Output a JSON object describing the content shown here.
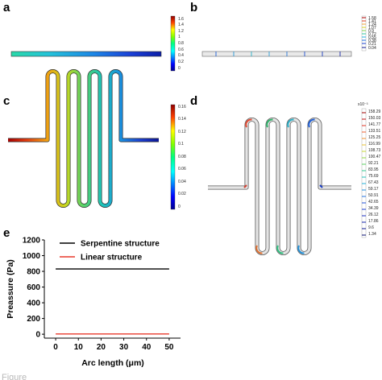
{
  "panels": {
    "a": {
      "letter": "a",
      "colorbar_ticks": [
        "1.6",
        "1.4",
        "1.2",
        "1",
        "0.8",
        "0.6",
        "0.4",
        "0.2",
        "0"
      ]
    },
    "b": {
      "letter": "b",
      "colorbar_ticks": [
        "1.58",
        "1.41",
        "1.24",
        "1.07",
        "0.9",
        "0.72",
        "0.55",
        "0.38",
        "0.21",
        "0.04"
      ]
    },
    "c": {
      "letter": "c",
      "colorbar_ticks": [
        "0.16",
        "0.14",
        "0.12",
        "0.1",
        "0.08",
        "0.06",
        "0.04",
        "0.02",
        "0"
      ]
    },
    "d": {
      "letter": "d",
      "colorbar_exponent": "x10⁻³",
      "colorbar_ticks": [
        "158.29",
        "150.03",
        "141.77",
        "133.51",
        "125.25",
        "116.99",
        "108.73",
        "100.47",
        "92.21",
        "83.95",
        "75.69",
        "67.43",
        "59.17",
        "50.91",
        "42.65",
        "34.39",
        "26.12",
        "17.86",
        "9.6",
        "1.34"
      ]
    },
    "e": {
      "letter": "e"
    }
  },
  "chart_data": {
    "type": "line",
    "xlabel": "Arc length (μm)",
    "ylabel": "Preassure (Pa)",
    "xlim": [
      -5,
      55
    ],
    "ylim": [
      -50,
      1200
    ],
    "x_ticks": [
      "0",
      "10",
      "20",
      "30",
      "40",
      "50"
    ],
    "y_ticks": [
      "0",
      "200",
      "400",
      "600",
      "800",
      "1000",
      "1200"
    ],
    "legend_position": "top-right",
    "series": [
      {
        "name": "Serpentine structure",
        "color": "#000000",
        "x": [
          0,
          50
        ],
        "y": [
          830,
          830
        ]
      },
      {
        "name": "Linear structure",
        "color": "#e8392b",
        "x": [
          0,
          50
        ],
        "y": [
          3,
          3
        ]
      }
    ]
  },
  "caption_fragment": "Figure"
}
